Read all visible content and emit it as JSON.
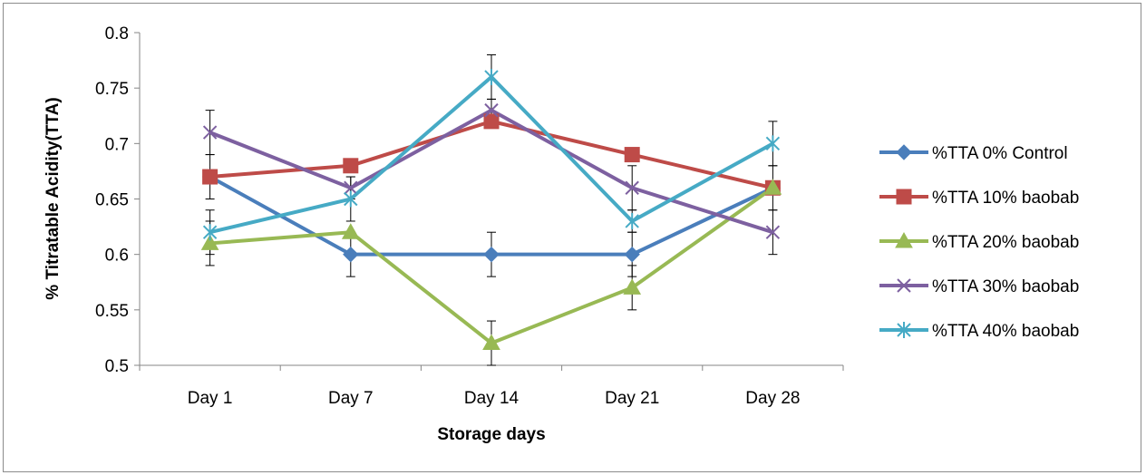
{
  "chart_data": {
    "type": "line",
    "title": "",
    "xlabel": "Storage days",
    "ylabel": "% Titratable Acidity(TTA)",
    "categories": [
      "Day 1",
      "Day 7",
      "Day 14",
      "Day 21",
      "Day 28"
    ],
    "ylim": [
      0.5,
      0.8
    ],
    "yticks": [
      "0.5",
      "0.55",
      "0.6",
      "0.65",
      "0.7",
      "0.75",
      "0.8"
    ],
    "grid": false,
    "legend_position": "right",
    "error_bars": true,
    "series": [
      {
        "name": "%TTA 0% Control",
        "values": [
          0.67,
          0.6,
          0.6,
          0.6,
          0.66
        ],
        "error": [
          0.02,
          0.02,
          0.02,
          0.02,
          0.02
        ],
        "color": "#4a7ebb",
        "marker": "diamond"
      },
      {
        "name": "%TTA 10% baobab",
        "values": [
          0.67,
          0.68,
          0.72,
          0.69,
          0.66
        ],
        "error": [
          0.0,
          0.0,
          0.0,
          0.0,
          0.0
        ],
        "color": "#be4b48",
        "marker": "square"
      },
      {
        "name": "%TTA 20% baobab",
        "values": [
          0.61,
          0.62,
          0.52,
          0.57,
          0.66
        ],
        "error": [
          0.02,
          0.0,
          0.02,
          0.02,
          0.0
        ],
        "color": "#98b954",
        "marker": "triangle"
      },
      {
        "name": "%TTA 30% baobab",
        "values": [
          0.71,
          0.66,
          0.73,
          0.66,
          0.62
        ],
        "error": [
          0.02,
          0.01,
          0.01,
          0.02,
          0.02
        ],
        "color": "#7d60a0",
        "marker": "x"
      },
      {
        "name": "%TTA 40% baobab",
        "values": [
          0.62,
          0.65,
          0.76,
          0.63,
          0.7
        ],
        "error": [
          0.02,
          0.02,
          0.02,
          0.01,
          0.02
        ],
        "color": "#46aac5",
        "marker": "star"
      }
    ]
  }
}
